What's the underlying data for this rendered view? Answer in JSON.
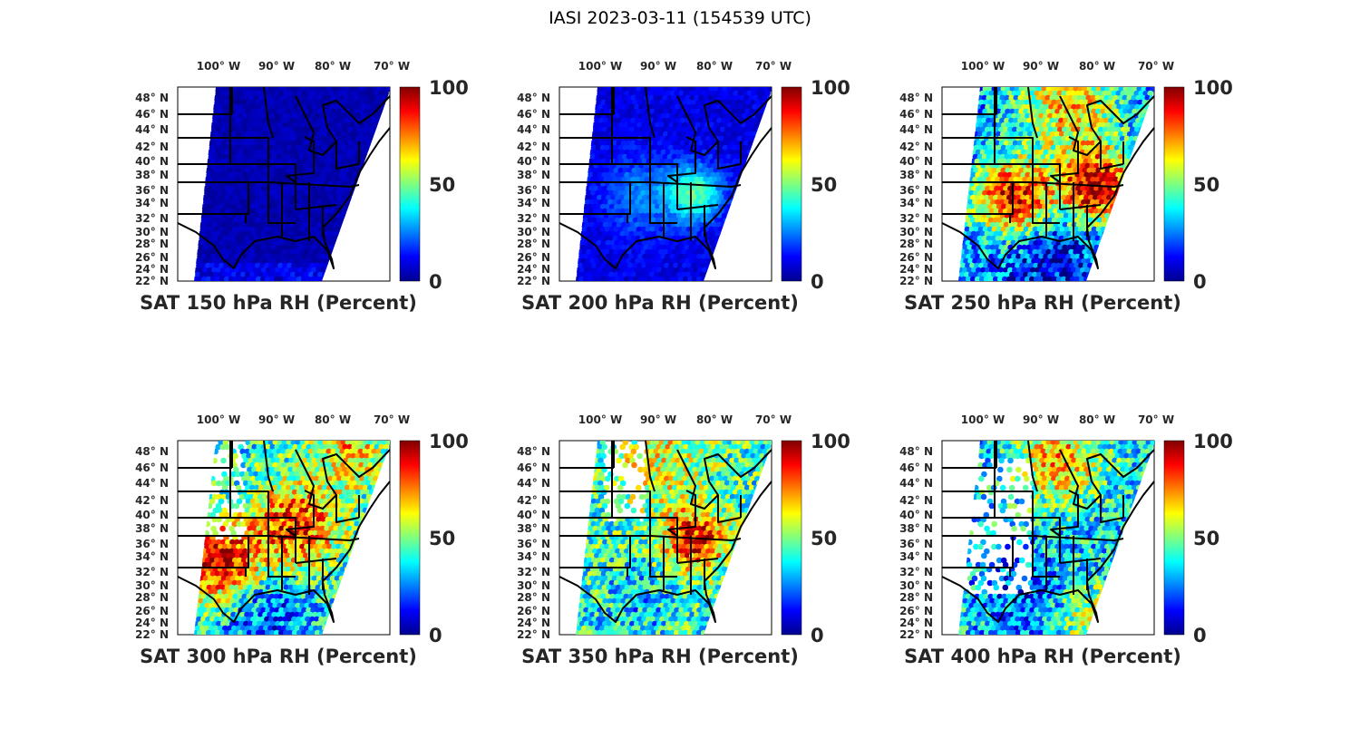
{
  "figure": {
    "title": "IASI 2023-03-11 (154539 UTC)"
  },
  "chart_data": {
    "type": "map",
    "lon_ticks": [
      "100° W",
      "90° W",
      "80° W",
      "70° W"
    ],
    "lat_ticks": [
      "48° N",
      "46° N",
      "44° N",
      "42° N",
      "40° N",
      "38° N",
      "36° N",
      "34° N",
      "32° N",
      "30° N",
      "28° N",
      "26° N",
      "24° N",
      "22° N"
    ],
    "colorbar": {
      "colormap": "jet",
      "ticks": [
        "100",
        "50",
        "0"
      ],
      "range": [
        0,
        100
      ]
    },
    "panels": [
      {
        "title": "SAT 150 hPa RH (Percent)",
        "level_hPa": 150
      },
      {
        "title": "SAT 200 hPa RH (Percent)",
        "level_hPa": 200
      },
      {
        "title": "SAT 250 hPa RH (Percent)",
        "level_hPa": 250
      },
      {
        "title": "SAT 300 hPa RH (Percent)",
        "level_hPa": 300
      },
      {
        "title": "SAT 350 hPa RH (Percent)",
        "level_hPa": 350
      },
      {
        "title": "SAT 400 hPa RH (Percent)",
        "level_hPa": 400
      }
    ]
  }
}
